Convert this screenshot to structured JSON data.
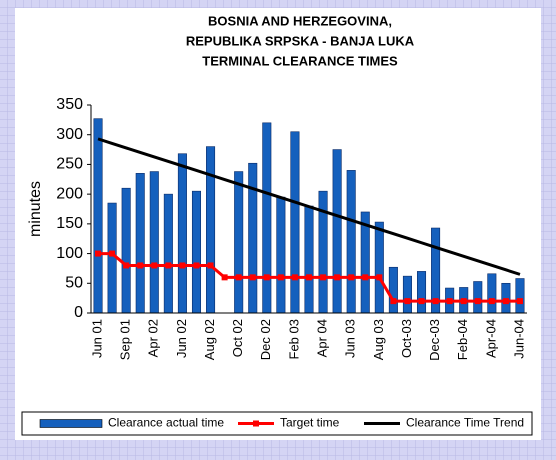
{
  "chart_data": {
    "type": "bar",
    "title": [
      "BOSNIA AND HERZEGOVINA,",
      "REPUBLIKA SRPSKA - BANJA LUKA",
      "TERMINAL CLEARANCE TIMES"
    ],
    "y_label": "minutes",
    "categories": [
      "Jun 01",
      null,
      "Sep 01",
      null,
      "Apr 02",
      null,
      "Jun 02",
      null,
      "Aug 02",
      null,
      "Oct 02",
      null,
      "Dec 02",
      null,
      "Feb 03",
      null,
      "Apr 04",
      null,
      "Jun 03",
      null,
      "Aug 03",
      null,
      "Oct-03",
      null,
      "Dec-03",
      null,
      "Feb-04",
      null,
      "Apr-04",
      null,
      "Jun-04"
    ],
    "series": [
      {
        "name": "Clearance actual time",
        "color": "#1560bd",
        "type": "bar",
        "values": [
          327,
          185,
          210,
          235,
          238,
          200,
          268,
          205,
          280,
          null,
          238,
          252,
          320,
          195,
          305,
          180,
          205,
          275,
          240,
          170,
          153,
          77,
          62,
          70,
          143,
          42,
          43,
          53,
          66,
          50,
          58
        ]
      },
      {
        "name": "Target time",
        "color": "#ff0000",
        "type": "line",
        "values": [
          100,
          100,
          80,
          80,
          80,
          80,
          80,
          80,
          80,
          60,
          60,
          60,
          60,
          60,
          60,
          60,
          60,
          60,
          60,
          60,
          60,
          20,
          20,
          20,
          20,
          20,
          20,
          20,
          20,
          20,
          20
        ]
      },
      {
        "name": "Clearance Time Trend",
        "color": "#000000",
        "type": "trend",
        "values": [
          293,
          285.4,
          277.8,
          270.2,
          262.6,
          255,
          247.4,
          239.8,
          232.2,
          224.6,
          217,
          209.4,
          201.8,
          194.2,
          186.6,
          179,
          171.4,
          163.8,
          156.2,
          148.6,
          141,
          133.4,
          125.8,
          118.2,
          110.6,
          103,
          95.4,
          87.8,
          80.2,
          72.6,
          65
        ]
      }
    ],
    "ylim": [
      0,
      350
    ],
    "yticks": [
      0,
      50,
      100,
      150,
      200,
      250,
      300,
      350
    ],
    "grid": false,
    "legend": "bottom"
  }
}
